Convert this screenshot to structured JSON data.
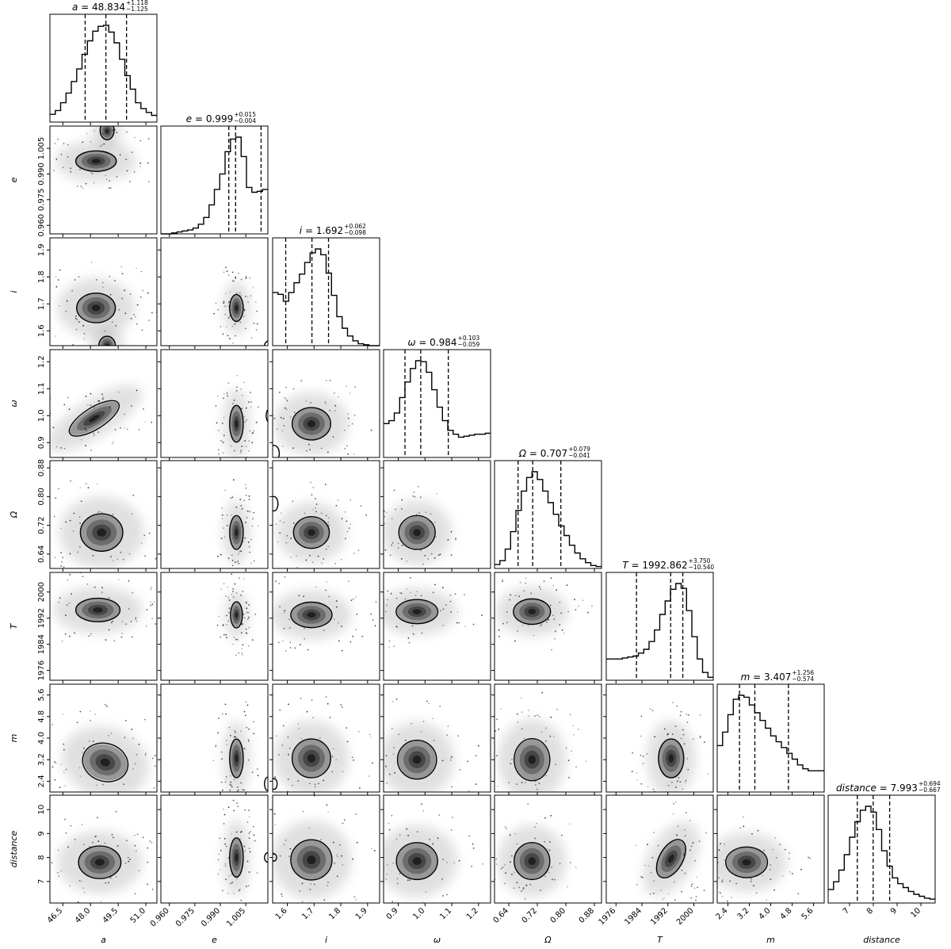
{
  "chart_data": {
    "type": "corner",
    "parameters": [
      {
        "label": "a",
        "symbol": "a",
        "title_value": "48.834",
        "err_plus": "+1.118",
        "err_minus": "−1.125",
        "range": [
          45.8,
          51.6
        ],
        "ticks": [
          46.5,
          48.0,
          49.5,
          51.0
        ],
        "tick_labels": [
          "46.5",
          "48.0",
          "49.5",
          "51.0"
        ],
        "quantiles": [
          47.709,
          48.834,
          49.952
        ],
        "hist": [
          0.08,
          0.12,
          0.2,
          0.3,
          0.42,
          0.55,
          0.7,
          0.84,
          0.94,
          0.99,
          1.0,
          0.93,
          0.82,
          0.65,
          0.48,
          0.34,
          0.2,
          0.14,
          0.1,
          0.07
        ]
      },
      {
        "label": "e",
        "symbol": "e",
        "title_value": "0.999",
        "err_plus": "+0.015",
        "err_minus": "−0.004",
        "range": [
          0.955,
          1.018
        ],
        "ticks": [
          0.96,
          0.975,
          0.99,
          1.005
        ],
        "tick_labels": [
          "0.960",
          "0.975",
          "0.990",
          "1.005"
        ],
        "quantiles": [
          0.995,
          0.999,
          1.014
        ],
        "hist": [
          0.0,
          0.0,
          0.01,
          0.02,
          0.03,
          0.04,
          0.06,
          0.1,
          0.17,
          0.3,
          0.46,
          0.62,
          0.85,
          0.98,
          1.0,
          0.8,
          0.48,
          0.43,
          0.44,
          0.46
        ]
      },
      {
        "label": "i",
        "symbol": "i",
        "title_value": "1.692",
        "err_plus": "+0.062",
        "err_minus": "−0.098",
        "range": [
          1.545,
          1.945
        ],
        "ticks": [
          1.6,
          1.7,
          1.8,
          1.9
        ],
        "tick_labels": [
          "1.6",
          "1.7",
          "1.8",
          "1.9"
        ],
        "quantiles": [
          1.594,
          1.692,
          1.754
        ],
        "hist": [
          0.55,
          0.53,
          0.46,
          0.55,
          0.65,
          0.74,
          0.86,
          0.96,
          1.0,
          0.94,
          0.75,
          0.52,
          0.3,
          0.18,
          0.1,
          0.05,
          0.02,
          0.01,
          0.0,
          0.0
        ]
      },
      {
        "label": "ω",
        "symbol": "ω",
        "title_value": "0.984",
        "err_plus": "+0.103",
        "err_minus": "−0.059",
        "range": [
          0.845,
          1.245
        ],
        "ticks": [
          0.9,
          1.0,
          1.1,
          1.2
        ],
        "tick_labels": [
          "0.9",
          "1.0",
          "1.1",
          "1.2"
        ],
        "quantiles": [
          0.925,
          0.984,
          1.087
        ],
        "hist": [
          0.35,
          0.38,
          0.46,
          0.62,
          0.78,
          0.92,
          1.0,
          0.99,
          0.88,
          0.7,
          0.52,
          0.38,
          0.28,
          0.24,
          0.21,
          0.22,
          0.23,
          0.24,
          0.24,
          0.25
        ]
      },
      {
        "label": "Ω",
        "symbol": "Ω",
        "title_value": "0.707",
        "err_plus": "+0.079",
        "err_minus": "−0.041",
        "range": [
          0.6,
          0.9
        ],
        "ticks": [
          0.64,
          0.72,
          0.8,
          0.88
        ],
        "tick_labels": [
          "0.64",
          "0.72",
          "0.80",
          "0.88"
        ],
        "quantiles": [
          0.666,
          0.707,
          0.786
        ],
        "hist": [
          0.04,
          0.08,
          0.2,
          0.38,
          0.6,
          0.8,
          0.94,
          1.0,
          0.92,
          0.8,
          0.68,
          0.56,
          0.44,
          0.34,
          0.24,
          0.16,
          0.1,
          0.06,
          0.03,
          0.02
        ]
      },
      {
        "label": "T",
        "symbol": "T",
        "title_value": "1992.862",
        "err_plus": "+3.750",
        "err_minus": "−10.540",
        "range": [
          1973,
          2006
        ],
        "ticks": [
          1976,
          1984,
          1992,
          2000
        ],
        "tick_labels": [
          "1976",
          "1984",
          "1992",
          "2000"
        ],
        "quantiles": [
          1982.322,
          1992.862,
          1996.612
        ],
        "hist": [
          0.22,
          0.22,
          0.22,
          0.23,
          0.24,
          0.25,
          0.28,
          0.32,
          0.4,
          0.52,
          0.68,
          0.82,
          0.94,
          1.0,
          0.95,
          0.72,
          0.45,
          0.22,
          0.08,
          0.03
        ]
      },
      {
        "label": "m",
        "symbol": "m",
        "title_value": "3.407",
        "err_plus": "+1.256",
        "err_minus": "−0.574",
        "range": [
          2.0,
          6.0
        ],
        "ticks": [
          2.4,
          3.2,
          4.0,
          4.8,
          5.6
        ],
        "tick_labels": [
          "2.4",
          "3.2",
          "4.0",
          "4.8",
          "5.6"
        ],
        "quantiles": [
          2.833,
          3.407,
          4.663
        ],
        "hist": [
          0.48,
          0.62,
          0.8,
          0.96,
          1.0,
          0.98,
          0.9,
          0.82,
          0.74,
          0.66,
          0.58,
          0.52,
          0.46,
          0.4,
          0.34,
          0.28,
          0.24,
          0.22,
          0.22,
          0.22
        ]
      },
      {
        "label": "distance",
        "symbol": "distance",
        "title_value": "7.993",
        "err_plus": "+0.694",
        "err_minus": "−0.667",
        "range": [
          6.1,
          10.6
        ],
        "ticks": [
          7,
          8,
          9,
          10
        ],
        "tick_labels": [
          "7",
          "8",
          "9",
          "10"
        ],
        "quantiles": [
          7.326,
          7.993,
          8.687
        ],
        "hist": [
          0.14,
          0.22,
          0.34,
          0.5,
          0.68,
          0.84,
          0.96,
          1.0,
          0.94,
          0.76,
          0.54,
          0.38,
          0.26,
          0.2,
          0.16,
          0.12,
          0.09,
          0.07,
          0.05,
          0.04
        ]
      }
    ],
    "pairs": [
      {
        "row": 1,
        "col": 0,
        "blobs": [
          {
            "cx": 48.3,
            "cy": 0.9975,
            "rx": 1.1,
            "ry": 0.006,
            "rot": 0
          },
          {
            "cx": 48.9,
            "cy": 1.015,
            "rx": 0.4,
            "ry": 0.005,
            "rot": 0
          }
        ],
        "contours": [
          {
            "cx": 48.3,
            "cy": 0.9975,
            "rx": 1.1,
            "ry": 0.006,
            "rot": 0
          },
          {
            "cx": 48.9,
            "cy": 1.0155,
            "rx": 0.38,
            "ry": 0.0055,
            "rot": 0
          }
        ]
      },
      {
        "row": 2,
        "col": 0,
        "blobs": [
          {
            "cx": 48.3,
            "cy": 1.685,
            "rx": 1.05,
            "ry": 0.055,
            "rot": 0
          },
          {
            "cx": 48.9,
            "cy": 1.545,
            "rx": 0.45,
            "ry": 0.035,
            "rot": 0
          }
        ],
        "contours": [
          {
            "cx": 48.3,
            "cy": 1.685,
            "rx": 1.05,
            "ry": 0.055,
            "rot": 0
          },
          {
            "cx": 48.9,
            "cy": 1.545,
            "rx": 0.45,
            "ry": 0.035,
            "rot": 0
          }
        ]
      },
      {
        "row": 3,
        "col": 0,
        "blobs": [
          {
            "cx": 48.2,
            "cy": 0.99,
            "rx": 1.5,
            "ry": 0.035,
            "rot": 32
          }
        ],
        "contours": [
          {
            "cx": 48.2,
            "cy": 0.99,
            "rx": 1.55,
            "ry": 0.04,
            "rot": 32
          }
        ]
      },
      {
        "row": 4,
        "col": 0,
        "blobs": [
          {
            "cx": 48.6,
            "cy": 0.7,
            "rx": 1.15,
            "ry": 0.05,
            "rot": 0
          }
        ],
        "contours": [
          {
            "cx": 48.6,
            "cy": 0.7,
            "rx": 1.15,
            "ry": 0.052,
            "rot": 0
          }
        ]
      },
      {
        "row": 5,
        "col": 0,
        "blobs": [
          {
            "cx": 48.4,
            "cy": 1994.5,
            "rx": 1.2,
            "ry": 3.6,
            "rot": 0
          }
        ],
        "contours": [
          {
            "cx": 48.4,
            "cy": 1994.5,
            "rx": 1.2,
            "ry": 3.6,
            "rot": 0
          }
        ]
      },
      {
        "row": 6,
        "col": 0,
        "blobs": [
          {
            "cx": 48.8,
            "cy": 3.1,
            "rx": 1.2,
            "ry": 0.65,
            "rot": -18
          }
        ],
        "contours": [
          {
            "cx": 48.8,
            "cy": 3.1,
            "rx": 1.25,
            "ry": 0.7,
            "rot": -18
          }
        ]
      },
      {
        "row": 7,
        "col": 0,
        "blobs": [
          {
            "cx": 48.5,
            "cy": 7.8,
            "rx": 1.15,
            "ry": 0.65,
            "rot": 0
          }
        ],
        "contours": [
          {
            "cx": 48.5,
            "cy": 7.8,
            "rx": 1.15,
            "ry": 0.68,
            "rot": 0
          }
        ]
      },
      {
        "row": 2,
        "col": 1,
        "blobs": [
          {
            "cx": 0.9995,
            "cy": 1.685,
            "rx": 0.004,
            "ry": 0.05,
            "rot": 0
          }
        ],
        "contours": [
          {
            "cx": 0.9995,
            "cy": 1.685,
            "rx": 0.004,
            "ry": 0.05,
            "rot": 0
          },
          {
            "cx": 1.021,
            "cy": 1.545,
            "rx": 0.005,
            "ry": 0.022,
            "rot": 0
          }
        ]
      },
      {
        "row": 3,
        "col": 1,
        "blobs": [
          {
            "cx": 0.9995,
            "cy": 0.97,
            "rx": 0.004,
            "ry": 0.065,
            "rot": 0
          }
        ],
        "contours": [
          {
            "cx": 0.9995,
            "cy": 0.97,
            "rx": 0.004,
            "ry": 0.068,
            "rot": 0
          },
          {
            "cx": 1.02,
            "cy": 1.0,
            "rx": 0.003,
            "ry": 0.03,
            "rot": 0
          }
        ]
      },
      {
        "row": 4,
        "col": 1,
        "blobs": [
          {
            "cx": 0.9995,
            "cy": 0.7,
            "rx": 0.004,
            "ry": 0.045,
            "rot": 0
          }
        ],
        "contours": [
          {
            "cx": 0.9995,
            "cy": 0.7,
            "rx": 0.004,
            "ry": 0.047,
            "rot": 0
          }
        ]
      },
      {
        "row": 5,
        "col": 1,
        "blobs": [
          {
            "cx": 0.9995,
            "cy": 1993,
            "rx": 0.0035,
            "ry": 3.8,
            "rot": 0
          }
        ],
        "contours": [
          {
            "cx": 0.9995,
            "cy": 1993,
            "rx": 0.0035,
            "ry": 4.0,
            "rot": 0
          }
        ]
      },
      {
        "row": 6,
        "col": 1,
        "blobs": [
          {
            "cx": 0.9995,
            "cy": 3.25,
            "rx": 0.004,
            "ry": 0.7,
            "rot": 0
          }
        ],
        "contours": [
          {
            "cx": 0.9995,
            "cy": 3.25,
            "rx": 0.004,
            "ry": 0.72,
            "rot": 0
          },
          {
            "cx": 1.018,
            "cy": 2.3,
            "rx": 0.002,
            "ry": 0.25,
            "rot": 0
          }
        ]
      },
      {
        "row": 7,
        "col": 1,
        "blobs": [
          {
            "cx": 0.9995,
            "cy": 8.0,
            "rx": 0.004,
            "ry": 0.8,
            "rot": 0
          }
        ],
        "contours": [
          {
            "cx": 0.9995,
            "cy": 8.0,
            "rx": 0.004,
            "ry": 0.82,
            "rot": 0
          },
          {
            "cx": 1.018,
            "cy": 8.0,
            "rx": 0.002,
            "ry": 0.2,
            "rot": 0
          }
        ]
      },
      {
        "row": 3,
        "col": 2,
        "blobs": [
          {
            "cx": 1.69,
            "cy": 0.97,
            "rx": 0.07,
            "ry": 0.058,
            "rot": 0
          }
        ],
        "contours": [
          {
            "cx": 1.69,
            "cy": 0.97,
            "rx": 0.072,
            "ry": 0.06,
            "rot": 0
          },
          {
            "cx": 1.55,
            "cy": 0.86,
            "rx": 0.02,
            "ry": 0.03,
            "rot": 0
          }
        ]
      },
      {
        "row": 4,
        "col": 2,
        "blobs": [
          {
            "cx": 1.69,
            "cy": 0.7,
            "rx": 0.065,
            "ry": 0.042,
            "rot": 0
          }
        ],
        "contours": [
          {
            "cx": 1.69,
            "cy": 0.7,
            "rx": 0.067,
            "ry": 0.044,
            "rot": 0
          },
          {
            "cx": 1.55,
            "cy": 0.78,
            "rx": 0.015,
            "ry": 0.02,
            "rot": 0
          }
        ]
      },
      {
        "row": 5,
        "col": 2,
        "blobs": [
          {
            "cx": 1.69,
            "cy": 1993,
            "rx": 0.075,
            "ry": 3.8,
            "rot": 0
          }
        ],
        "contours": [
          {
            "cx": 1.69,
            "cy": 1993,
            "rx": 0.077,
            "ry": 3.9,
            "rot": 0
          }
        ]
      },
      {
        "row": 6,
        "col": 2,
        "blobs": [
          {
            "cx": 1.69,
            "cy": 3.25,
            "rx": 0.07,
            "ry": 0.7,
            "rot": 0
          }
        ],
        "contours": [
          {
            "cx": 1.69,
            "cy": 3.25,
            "rx": 0.072,
            "ry": 0.72,
            "rot": 0
          },
          {
            "cx": 1.55,
            "cy": 2.3,
            "rx": 0.012,
            "ry": 0.2,
            "rot": 0
          }
        ]
      },
      {
        "row": 7,
        "col": 2,
        "blobs": [
          {
            "cx": 1.69,
            "cy": 7.9,
            "rx": 0.075,
            "ry": 0.82,
            "rot": 0
          }
        ],
        "contours": [
          {
            "cx": 1.69,
            "cy": 7.9,
            "rx": 0.077,
            "ry": 0.84,
            "rot": 0
          },
          {
            "cx": 1.55,
            "cy": 8.0,
            "rx": 0.01,
            "ry": 0.15,
            "rot": 0
          }
        ]
      },
      {
        "row": 4,
        "col": 3,
        "blobs": [
          {
            "cx": 0.97,
            "cy": 0.7,
            "rx": 0.065,
            "ry": 0.045,
            "rot": 0
          }
        ],
        "contours": [
          {
            "cx": 0.97,
            "cy": 0.7,
            "rx": 0.068,
            "ry": 0.047,
            "rot": 0
          }
        ]
      },
      {
        "row": 5,
        "col": 3,
        "blobs": [
          {
            "cx": 0.97,
            "cy": 1994,
            "rx": 0.075,
            "ry": 3.6,
            "rot": 0
          }
        ],
        "contours": [
          {
            "cx": 0.97,
            "cy": 1994,
            "rx": 0.078,
            "ry": 3.7,
            "rot": 0
          }
        ]
      },
      {
        "row": 6,
        "col": 3,
        "blobs": [
          {
            "cx": 0.97,
            "cy": 3.2,
            "rx": 0.07,
            "ry": 0.7,
            "rot": 0
          }
        ],
        "contours": [
          {
            "cx": 0.97,
            "cy": 3.2,
            "rx": 0.073,
            "ry": 0.72,
            "rot": 0
          }
        ]
      },
      {
        "row": 7,
        "col": 3,
        "blobs": [
          {
            "cx": 0.97,
            "cy": 7.85,
            "rx": 0.075,
            "ry": 0.75,
            "rot": 0
          }
        ],
        "contours": [
          {
            "cx": 0.97,
            "cy": 7.85,
            "rx": 0.077,
            "ry": 0.77,
            "rot": 0
          }
        ]
      },
      {
        "row": 5,
        "col": 4,
        "blobs": [
          {
            "cx": 0.705,
            "cy": 1994,
            "rx": 0.05,
            "ry": 3.8,
            "rot": 0
          }
        ],
        "contours": [
          {
            "cx": 0.705,
            "cy": 1994,
            "rx": 0.052,
            "ry": 3.9,
            "rot": 0
          }
        ]
      },
      {
        "row": 6,
        "col": 4,
        "blobs": [
          {
            "cx": 0.705,
            "cy": 3.2,
            "rx": 0.048,
            "ry": 0.75,
            "rot": 0
          }
        ],
        "contours": [
          {
            "cx": 0.705,
            "cy": 3.2,
            "rx": 0.05,
            "ry": 0.78,
            "rot": 0
          }
        ]
      },
      {
        "row": 7,
        "col": 4,
        "blobs": [
          {
            "cx": 0.705,
            "cy": 7.85,
            "rx": 0.048,
            "ry": 0.75,
            "rot": 0
          }
        ],
        "contours": [
          {
            "cx": 0.705,
            "cy": 7.85,
            "rx": 0.05,
            "ry": 0.77,
            "rot": 0
          }
        ]
      },
      {
        "row": 6,
        "col": 5,
        "blobs": [
          {
            "cx": 1993,
            "cy": 3.25,
            "rx": 3.8,
            "ry": 0.7,
            "rot": 0
          }
        ],
        "contours": [
          {
            "cx": 1993,
            "cy": 3.25,
            "rx": 3.9,
            "ry": 0.72,
            "rot": 0
          }
        ]
      },
      {
        "row": 7,
        "col": 5,
        "blobs": [
          {
            "cx": 1993,
            "cy": 7.95,
            "rx": 3.5,
            "ry": 0.85,
            "rot": -30
          }
        ],
        "contours": [
          {
            "cx": 1993,
            "cy": 7.95,
            "rx": 3.6,
            "ry": 0.88,
            "rot": -30
          }
        ]
      },
      {
        "row": 7,
        "col": 6,
        "blobs": [
          {
            "cx": 3.1,
            "cy": 7.8,
            "rx": 0.75,
            "ry": 0.62,
            "rot": 0
          }
        ],
        "contours": [
          {
            "cx": 3.1,
            "cy": 7.8,
            "rx": 0.78,
            "ry": 0.64,
            "rot": 0
          }
        ]
      }
    ]
  }
}
